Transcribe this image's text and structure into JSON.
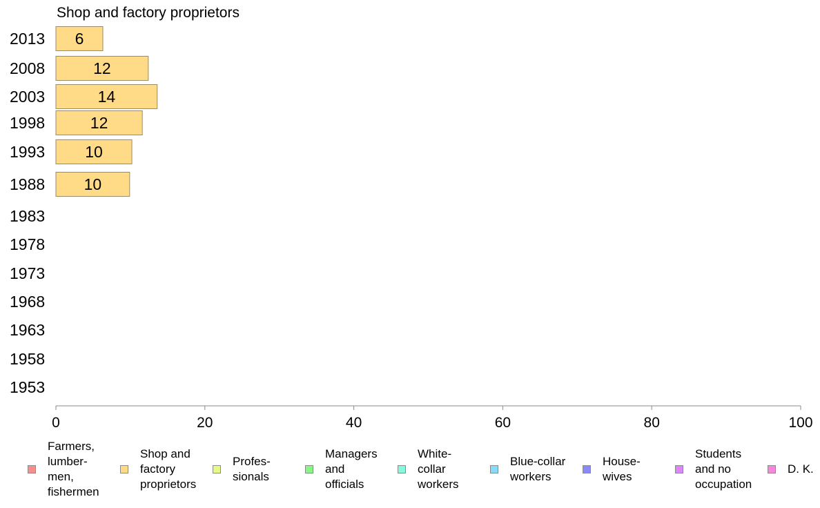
{
  "chart_data": {
    "type": "bar",
    "orientation": "horizontal",
    "title": "Shop and factory proprietors",
    "categories": [
      "2013",
      "2008",
      "2003",
      "1998",
      "1993",
      "1988",
      "1983",
      "1978",
      "1973",
      "1968",
      "1963",
      "1958",
      "1953"
    ],
    "series": [
      {
        "name": "Shop and factory proprietors",
        "color": "#FFDB87",
        "values": [
          6.3,
          12.4,
          13.6,
          11.6,
          10.2,
          9.9,
          null,
          null,
          null,
          null,
          null,
          null,
          null
        ],
        "labels": [
          "6",
          "12",
          "14",
          "12",
          "10",
          "10",
          "",
          "",
          "",
          "",
          "",
          "",
          ""
        ]
      }
    ],
    "xlim": [
      0,
      100
    ],
    "xticks": [
      "0",
      "20",
      "40",
      "60",
      "80",
      "100"
    ],
    "grid": false,
    "legend_position": "bottom",
    "legend": [
      {
        "label": "Farmers,\nlumber-\nmen,\nfishermen",
        "color": "#F88E8E"
      },
      {
        "label": "Shop and\nfactory\nproprietors",
        "color": "#FFDB87"
      },
      {
        "label": "Profes-\nsionals",
        "color": "#E6FA87"
      },
      {
        "label": "Managers\nand\nofficials",
        "color": "#87F887"
      },
      {
        "label": "White-\ncollar\nworkers",
        "color": "#87F8D9"
      },
      {
        "label": "Blue-collar\nworkers",
        "color": "#87DBFA"
      },
      {
        "label": "House-\nwives",
        "color": "#8A8AF8"
      },
      {
        "label": "Students\nand no\noccupation",
        "color": "#DB87F8"
      },
      {
        "label": "D. K.",
        "color": "#F887DB"
      }
    ]
  }
}
